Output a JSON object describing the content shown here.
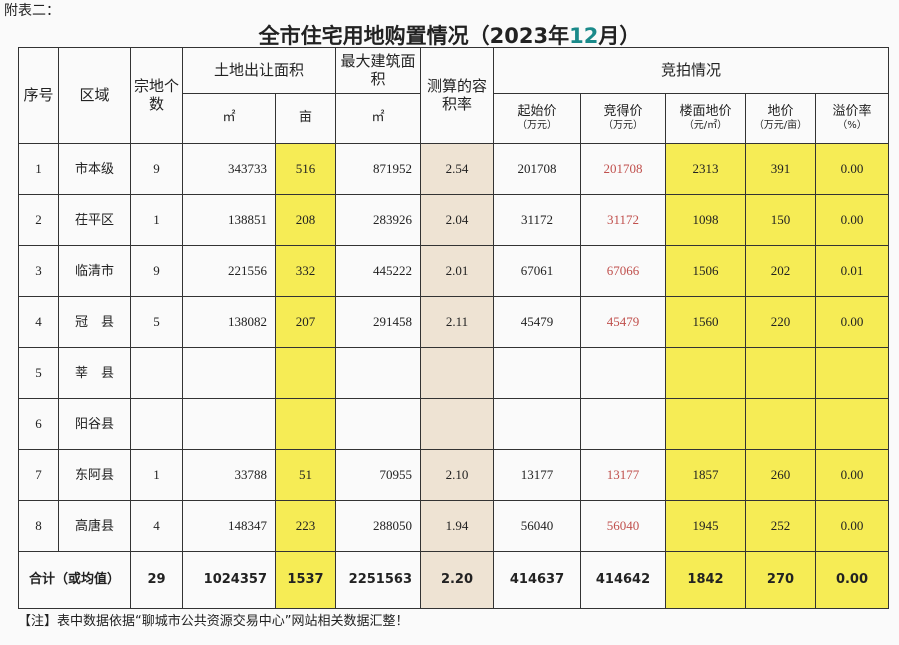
{
  "header": {
    "prefix": "附表二：",
    "title_start": "全市住宅用地购置情况（2023年",
    "title_month": "12",
    "title_end": "月）"
  },
  "table": {
    "columns": {
      "no": "序号",
      "region": "区域",
      "parcels": "宗地个数",
      "land_area": "土地出让面积",
      "land_m2": "㎡",
      "land_mu": "亩",
      "max_build": "最大建筑面积",
      "max_build_m2": "㎡",
      "ratio": "测算的容积率",
      "auction": "竞拍情况",
      "start_price": "起始价",
      "start_unit": "（万元）",
      "won_price": "竞得价",
      "won_unit": "（万元）",
      "floor_price": "楼面地价",
      "floor_unit": "（元/㎡）",
      "land_price": "地价",
      "land_unit": "（万元/亩）",
      "premium": "溢价率",
      "premium_unit": "（%）"
    },
    "rows": [
      [
        "1",
        "市本级",
        "9",
        "343733",
        "516",
        "871952",
        "2.54",
        "201708",
        "201708",
        "2313",
        "391",
        "0.00"
      ],
      [
        "2",
        "茌平区",
        "1",
        "138851",
        "208",
        "283926",
        "2.04",
        "31172",
        "31172",
        "1098",
        "150",
        "0.00"
      ],
      [
        "3",
        "临清市",
        "9",
        "221556",
        "332",
        "445222",
        "2.01",
        "67061",
        "67066",
        "1506",
        "202",
        "0.01"
      ],
      [
        "4",
        "冠　县",
        "5",
        "138082",
        "207",
        "291458",
        "2.11",
        "45479",
        "45479",
        "1560",
        "220",
        "0.00"
      ],
      [
        "5",
        "莘　县",
        null,
        null,
        null,
        null,
        null,
        null,
        null,
        null,
        null,
        null
      ],
      [
        "6",
        "阳谷县",
        null,
        null,
        null,
        null,
        null,
        null,
        null,
        null,
        null,
        null
      ],
      [
        "7",
        "东阿县",
        "1",
        "33788",
        "51",
        "70955",
        "2.10",
        "13177",
        "13177",
        "1857",
        "260",
        "0.00"
      ],
      [
        "8",
        "高唐县",
        "4",
        "148347",
        "223",
        "288050",
        "1.94",
        "56040",
        "56040",
        "1945",
        "252",
        "0.00"
      ]
    ],
    "total": {
      "label": "合计（或均值）",
      "values": [
        "29",
        "1024357",
        "1537",
        "2251563",
        "2.20",
        "414637",
        "414642",
        "1842",
        "270",
        "0.00"
      ]
    }
  },
  "note": "【注】表中数据依据“聊城市公共资源交易中心”网站相关数据汇整！"
}
